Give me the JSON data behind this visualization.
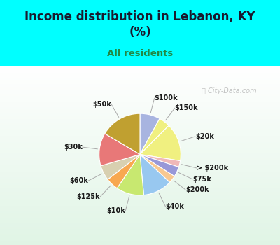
{
  "title": "Income distribution in Lebanon, KY\n(%)",
  "subtitle": "All residents",
  "bg_top_color": "#00FFFF",
  "chart_bg_start": "#f0faf5",
  "chart_bg_end": "#c8f0e8",
  "watermark": "City-Data.com",
  "slices": [
    {
      "label": "$100k",
      "value": 8.0,
      "color": "#a8b4e0"
    },
    {
      "label": "$150k",
      "value": 4.5,
      "color": "#f0f080"
    },
    {
      "label": "$20k",
      "value": 15.0,
      "color": "#f0f080"
    },
    {
      "label": "> $200k",
      "value": 2.5,
      "color": "#f0b8b8"
    },
    {
      "label": "$75k",
      "value": 4.0,
      "color": "#9898d8"
    },
    {
      "label": "$200k",
      "value": 3.0,
      "color": "#f8c890"
    },
    {
      "label": "$40k",
      "value": 11.5,
      "color": "#98c8f0"
    },
    {
      "label": "$10k",
      "value": 11.0,
      "color": "#c8e870"
    },
    {
      "label": "$125k",
      "value": 5.0,
      "color": "#f8a850"
    },
    {
      "label": "$60k",
      "value": 6.0,
      "color": "#d8d0b0"
    },
    {
      "label": "$30k",
      "value": 13.0,
      "color": "#e87878"
    },
    {
      "label": "$50k",
      "value": 16.5,
      "color": "#c0a030"
    }
  ]
}
